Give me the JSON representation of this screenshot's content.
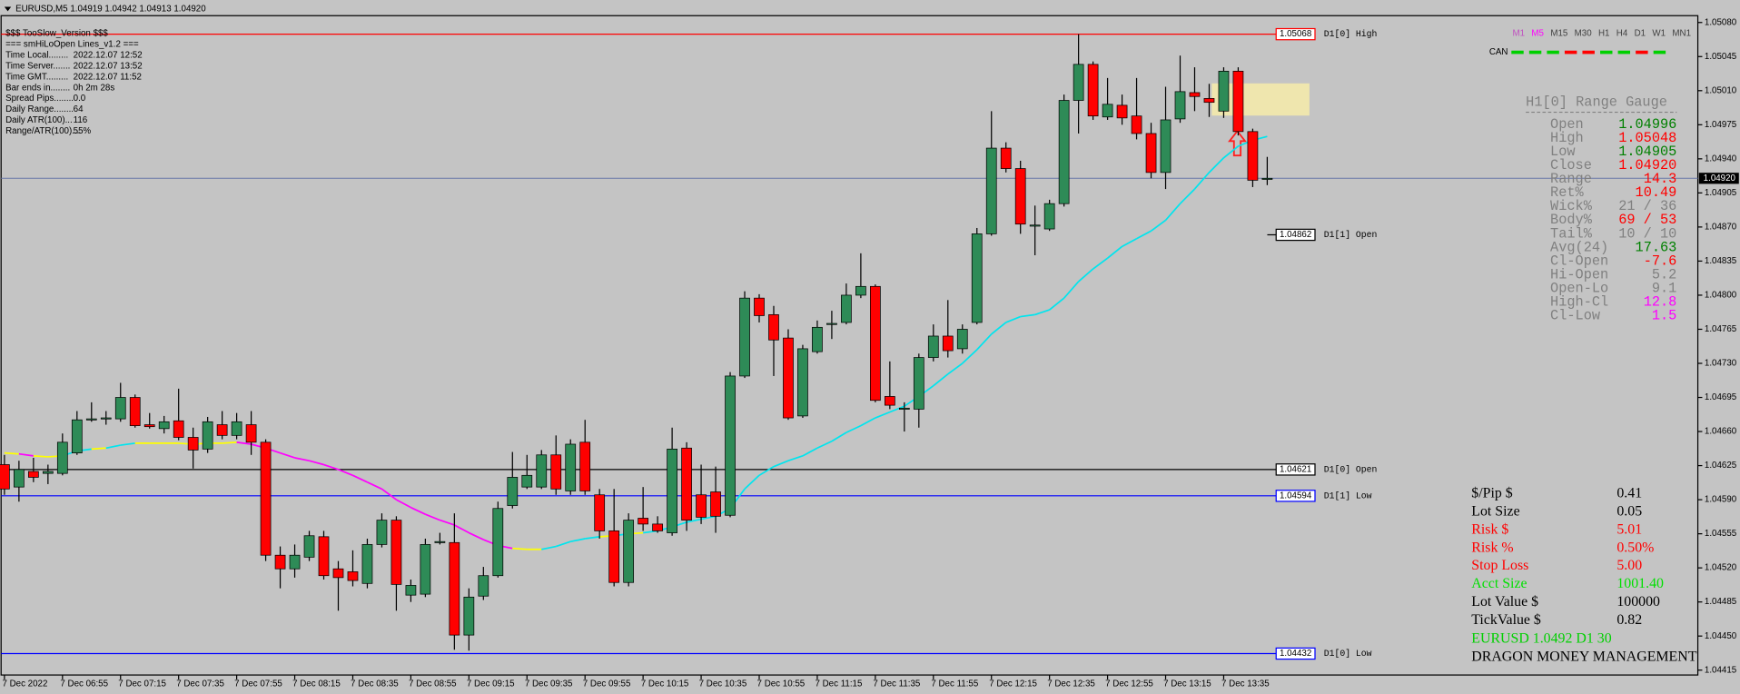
{
  "chart_data": {
    "type": "candlestick",
    "title": "EURUSD,M5  1.04919 1.04942 1.04913 1.04920",
    "categories": [
      "7 Dec 2022",
      null,
      null,
      null,
      "7 Dec 06:55",
      null,
      null,
      null,
      "7 Dec 07:15",
      null,
      null,
      null,
      "7 Dec 07:35",
      null,
      null,
      null,
      "7 Dec 07:55",
      null,
      null,
      null,
      "7 Dec 08:15",
      null,
      null,
      null,
      "7 Dec 08:35",
      null,
      null,
      null,
      "7 Dec 08:55",
      null,
      null,
      null,
      "7 Dec 09:15",
      null,
      null,
      null,
      "7 Dec 09:35",
      null,
      null,
      null,
      "7 Dec 09:55",
      null,
      null,
      null,
      "7 Dec 10:15",
      null,
      null,
      null,
      "7 Dec 10:35",
      null,
      null,
      null,
      "7 Dec 10:55",
      null,
      null,
      null,
      "7 Dec 11:15",
      null,
      null,
      null,
      "7 Dec 11:35",
      null,
      null,
      null,
      "7 Dec 11:55",
      null,
      null,
      null,
      "7 Dec 12:15",
      null,
      null,
      null,
      "7 Dec 12:35",
      null,
      null,
      null,
      "7 Dec 12:55",
      null,
      null,
      null,
      "7 Dec 13:15",
      null,
      null,
      null,
      "7 Dec 13:35",
      null,
      null,
      null
    ],
    "open": [
      1.04626,
      1.04603,
      1.04619,
      1.04617,
      1.04617,
      1.04638,
      1.04672,
      1.04673,
      1.04673,
      1.04695,
      1.04667,
      1.04663,
      1.04671,
      1.04654,
      1.04642,
      1.04667,
      1.04656,
      1.04667,
      1.04649,
      1.04533,
      1.04519,
      1.04531,
      1.04552,
      1.04519,
      1.04516,
      1.04504,
      1.04544,
      1.04569,
      1.04492,
      1.04493,
      1.04546,
      1.04546,
      1.04451,
      1.04491,
      1.04512,
      1.04584,
      1.04603,
      1.04603,
      1.04636,
      1.04599,
      1.04649,
      1.04595,
      1.04558,
      1.04505,
      1.04571,
      1.04565,
      1.04556,
      1.04643,
      1.04595,
      1.04598,
      1.04574,
      1.04717,
      1.04797,
      1.0478,
      1.04756,
      1.04676,
      1.04742,
      1.0477,
      1.04772,
      1.048,
      1.04809,
      1.04696,
      1.04683,
      1.04683,
      1.04736,
      1.04758,
      1.04745,
      1.04772,
      1.04863,
      1.04951,
      1.0493,
      1.04871,
      1.04868,
      1.04894,
      1.05,
      1.05037,
      1.04983,
      1.04995,
      1.04984,
      1.04966,
      1.04926,
      1.04981,
      1.05008,
      1.05002,
      1.04989,
      1.0503,
      1.04968,
      1.04919
    ],
    "high": [
      1.04636,
      1.0463,
      1.04633,
      1.04626,
      1.04658,
      1.04681,
      1.0469,
      1.04681,
      1.0471,
      1.04698,
      1.04679,
      1.04676,
      1.04704,
      1.04664,
      1.04675,
      1.04681,
      1.04679,
      1.04681,
      1.04652,
      1.04542,
      1.04544,
      1.04558,
      1.04558,
      1.04527,
      1.04538,
      1.0455,
      1.04576,
      1.04573,
      1.04508,
      1.0455,
      1.04556,
      1.04576,
      1.04499,
      1.04521,
      1.04588,
      1.04639,
      1.04636,
      1.04641,
      1.04656,
      1.04652,
      1.04672,
      1.04601,
      1.04601,
      1.04576,
      1.04603,
      1.04573,
      1.04664,
      1.04649,
      1.04626,
      1.04624,
      1.04721,
      1.04804,
      1.04801,
      1.04789,
      1.04765,
      1.04749,
      1.04774,
      1.04784,
      1.04812,
      1.04843,
      1.04811,
      1.04732,
      1.0469,
      1.0474,
      1.0477,
      1.04795,
      1.0477,
      1.04869,
      1.04989,
      1.04957,
      1.04938,
      1.04892,
      1.04898,
      1.05006,
      1.05068,
      1.0504,
      1.05023,
      1.05006,
      1.05023,
      1.04977,
      1.05014,
      1.05046,
      1.05034,
      1.05017,
      1.05034,
      1.05034,
      1.04971,
      1.04942
    ],
    "low": [
      1.04595,
      1.04588,
      1.04608,
      1.04606,
      1.04615,
      1.04636,
      1.0467,
      1.04667,
      1.0467,
      1.04664,
      1.04663,
      1.04658,
      1.04651,
      1.04622,
      1.04638,
      1.04652,
      1.04652,
      1.04636,
      1.04527,
      1.04499,
      1.0451,
      1.04527,
      1.04508,
      1.04476,
      1.04501,
      1.04499,
      1.04541,
      1.04476,
      1.04485,
      1.0449,
      1.04544,
      1.04436,
      1.04435,
      1.04487,
      1.0451,
      1.04581,
      1.04601,
      1.04601,
      1.04595,
      1.04595,
      1.04595,
      1.0455,
      1.04501,
      1.04501,
      1.04558,
      1.04556,
      1.04553,
      1.04558,
      1.04565,
      1.04556,
      1.04572,
      1.04715,
      1.04772,
      1.04717,
      1.04672,
      1.04674,
      1.0474,
      1.04755,
      1.0477,
      1.04797,
      1.0469,
      1.04683,
      1.0466,
      1.04664,
      1.04732,
      1.04736,
      1.0474,
      1.0477,
      1.04861,
      1.04926,
      1.04863,
      1.04841,
      1.04866,
      1.04891,
      1.04966,
      1.0498,
      1.0498,
      1.04975,
      1.0496,
      1.0492,
      1.04909,
      1.04977,
      1.04989,
      1.04983,
      1.04982,
      1.04964,
      1.04911,
      1.04913
    ],
    "close": [
      1.04601,
      1.04621,
      1.04613,
      1.04619,
      1.04649,
      1.04672,
      1.04673,
      1.04674,
      1.04695,
      1.04666,
      1.04665,
      1.0467,
      1.04654,
      1.04641,
      1.0467,
      1.04656,
      1.0467,
      1.04649,
      1.04533,
      1.04519,
      1.04533,
      1.04553,
      1.04512,
      1.0451,
      1.04507,
      1.04544,
      1.04569,
      1.04503,
      1.04502,
      1.04544,
      1.04547,
      1.04451,
      1.0449,
      1.04512,
      1.04581,
      1.04613,
      1.04615,
      1.04636,
      1.04601,
      1.04647,
      1.04599,
      1.04558,
      1.04505,
      1.04569,
      1.04565,
      1.04558,
      1.04642,
      1.04569,
      1.04572,
      1.04573,
      1.04717,
      1.04797,
      1.04779,
      1.04754,
      1.04674,
      1.04745,
      1.04767,
      1.04771,
      1.048,
      1.04809,
      1.04692,
      1.04687,
      1.04684,
      1.04736,
      1.04758,
      1.04743,
      1.04765,
      1.04863,
      1.04951,
      1.0493,
      1.04873,
      1.04872,
      1.04894,
      1.05,
      1.05037,
      1.04984,
      1.04996,
      1.04982,
      1.04966,
      1.04926,
      1.0498,
      1.05009,
      1.05004,
      1.04998,
      1.0503,
      1.04968,
      1.04918,
      1.0492
    ],
    "up_color": "#2e8b57",
    "down_color": "#ff0000",
    "ma": {
      "values": [
        1.04638,
        1.04637,
        1.04635,
        1.04634,
        1.04635,
        1.0464,
        1.04642,
        1.04643,
        1.04646,
        1.04648,
        1.04648,
        1.04648,
        1.04648,
        1.04647,
        1.04648,
        1.04648,
        1.04649,
        1.04647,
        1.04643,
        1.04638,
        1.04633,
        1.0463,
        1.04626,
        1.04621,
        1.04615,
        1.04608,
        1.04601,
        1.0459,
        1.04582,
        1.04575,
        1.04569,
        1.04564,
        1.04556,
        1.04549,
        1.04543,
        1.0454,
        1.04539,
        1.04539,
        1.04542,
        1.04547,
        1.0455,
        1.04552,
        1.04553,
        1.04555,
        1.04556,
        1.04558,
        1.04562,
        1.04567,
        1.0457,
        1.04573,
        1.04581,
        1.04601,
        1.04615,
        1.04624,
        1.0463,
        1.04635,
        1.04643,
        1.0465,
        1.04659,
        1.04666,
        1.04674,
        1.0468,
        1.04686,
        1.04696,
        1.04707,
        1.04719,
        1.0473,
        1.04744,
        1.0476,
        1.04772,
        1.04778,
        1.0478,
        1.04785,
        1.04797,
        1.04814,
        1.04827,
        1.04838,
        1.0485,
        1.04858,
        1.04866,
        1.04877,
        1.04894,
        1.04909,
        1.04926,
        1.04941,
        1.04953,
        1.04959,
        1.04963
      ],
      "up_color": "#00e5ee",
      "down_color": "#ff00ff",
      "flat_color": "#ffff00"
    },
    "levels": [
      {
        "name": "D1[0] High",
        "price": 1.05068,
        "color": "#ff0000",
        "full": true
      },
      {
        "name": "D1[1] Open",
        "price": 1.04862,
        "color": "#000000",
        "full": false
      },
      {
        "name": "D1[0] Open",
        "price": 1.04621,
        "color": "#000000",
        "full": true
      },
      {
        "name": "D1[1] Low",
        "price": 1.04594,
        "color": "#0000ff",
        "full": true
      },
      {
        "name": "D1[0] Low",
        "price": 1.04432,
        "color": "#0000ff",
        "full": true
      }
    ],
    "current": {
      "value": 1.0492,
      "label": "1.04920"
    },
    "ylim": [
      1.0441,
      1.05087
    ],
    "yticks": [
      {
        "value": 1.0508,
        "label": "1.05080"
      },
      1.05045,
      {
        "value": 1.0501,
        "label": "1.05010"
      },
      1.04975,
      {
        "value": 1.0494,
        "label": "1.04940"
      },
      1.04905,
      {
        "value": 1.0487,
        "label": "1.04870"
      },
      1.04835,
      {
        "value": 1.048,
        "label": "1.04800"
      },
      1.04765,
      {
        "value": 1.0473,
        "label": "1.04730"
      },
      1.04695,
      {
        "value": 1.0466,
        "label": "1.04660"
      },
      1.04625,
      {
        "value": 1.0459,
        "label": "1.04590"
      },
      1.04555,
      {
        "value": 1.0452,
        "label": "1.04520"
      },
      1.04485,
      {
        "value": 1.0445,
        "label": "1.04450"
      },
      1.04415
    ],
    "grid": false
  },
  "info_panel": {
    "title_lines": [
      "$$$ TooSlow_Version $$$",
      "=== smHiLoOpen Lines_v1.2 ==="
    ],
    "rows": [
      {
        "label": "Time Local........",
        "value": "2022.12.07 12:52"
      },
      {
        "label": "Time Server.......",
        "value": "2022.12.07 13:52"
      },
      {
        "label": "Time GMT.........",
        "value": "2022.12.07 11:52"
      },
      {
        "label": "Bar ends in........",
        "value": "0h 2m 28s"
      },
      {
        "label": "Spread Pips........",
        "value": "0.0"
      },
      {
        "label": "Daily Range........",
        "value": "64"
      },
      {
        "label": "Daily ATR(100)...",
        "value": "116"
      },
      {
        "label": "Range/ATR(100)...",
        "value": "55%"
      }
    ]
  },
  "timeframes": {
    "items": [
      {
        "label": "M1",
        "color": "#c050c0"
      },
      {
        "label": "M5",
        "color": "#ff00ff"
      },
      {
        "label": "M15",
        "color": "#404040"
      },
      {
        "label": "M30",
        "color": "#404040"
      },
      {
        "label": "H1",
        "color": "#404040"
      },
      {
        "label": "H4",
        "color": "#404040"
      },
      {
        "label": "D1",
        "color": "#404040"
      },
      {
        "label": "W1",
        "color": "#404040"
      },
      {
        "label": "MN1",
        "color": "#404040"
      }
    ],
    "can_label": "CAN",
    "can_colors": [
      "#00d000",
      "#00d000",
      "#00d000",
      "#ff0000",
      "#ff0000",
      "#00d000",
      "#00d000",
      "#ff0000",
      "#00d000"
    ]
  },
  "range_gauge": {
    "title": "H1[0] Range Gauge",
    "rows": [
      {
        "label": "Open",
        "value": "1.04996",
        "color": "#008000"
      },
      {
        "label": "High",
        "value": "1.05048",
        "color": "#ff0000"
      },
      {
        "label": "Low",
        "value": "1.04905",
        "color": "#008000"
      },
      {
        "label": "Close",
        "value": "1.04920",
        "color": "#ff0000"
      },
      {
        "label": "Range",
        "value": "14.3",
        "color": "#ff0000"
      },
      {
        "label": "Ret%",
        "value": "10.49",
        "color": "#ff0000"
      },
      {
        "label": "Wick%",
        "value": "21 / 36",
        "color": "#808080"
      },
      {
        "label": "Body%",
        "value": "69 / 53",
        "color": "#ff0000"
      },
      {
        "label": "Tail%",
        "value": "10 / 10",
        "color": "#808080"
      },
      {
        "label": "Avg(24)",
        "value": "17.63",
        "color": "#008000"
      },
      {
        "label": "Cl-Open",
        "value": "-7.6",
        "color": "#ff0000"
      },
      {
        "label": "Hi-Open",
        "value": "5.2",
        "color": "#808080"
      },
      {
        "label": "Open-Lo",
        "value": "9.1",
        "color": "#808080"
      },
      {
        "label": "High-Cl",
        "value": "12.8",
        "color": "#ff00ff"
      },
      {
        "label": "Cl-Low",
        "value": "1.5",
        "color": "#ff00ff"
      }
    ]
  },
  "money_management": {
    "rows": [
      {
        "label": "$/Pip $",
        "value": "0.41",
        "color": "#000000"
      },
      {
        "label": "Lot Size",
        "value": "0.05",
        "color": "#000000"
      },
      {
        "label": "Risk $",
        "value": "5.01",
        "color": "#ff0000"
      },
      {
        "label": "Risk %",
        "value": "0.50%",
        "color": "#ff0000"
      },
      {
        "label": "Stop Loss",
        "value": "5.00",
        "color": "#ff0000"
      },
      {
        "label": "Acct Size",
        "value": "1001.40",
        "color": "#00e000"
      },
      {
        "label": "Lot Value $",
        "value": "100000",
        "color": "#000000"
      },
      {
        "label": "TickValue $",
        "value": "0.82",
        "color": "#000000"
      }
    ],
    "footer_lines": [
      {
        "text": "EURUSD 1.0492 D1 30",
        "color": "#00d000"
      },
      {
        "text": "DRAGON MONEY MANAGEMENT",
        "color": "#000000"
      }
    ]
  }
}
